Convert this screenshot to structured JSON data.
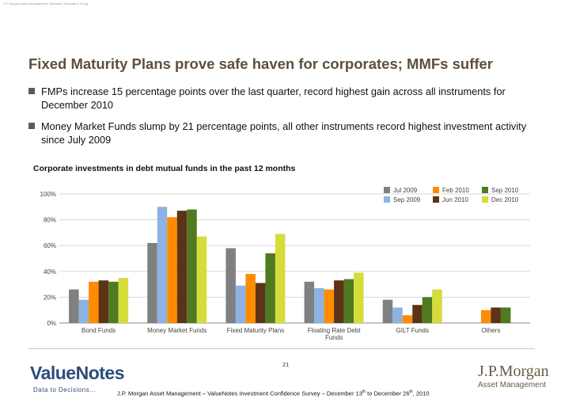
{
  "header": {
    "template_note": "J.P. Morgan Asset Management: Standard Template 4:3 Eng"
  },
  "title": "Fixed Maturity Plans prove safe haven for corporates; MMFs suffer",
  "bullets": [
    "FMPs increase 15 percentage points over the last quarter, record highest gain across all instruments for December 2010",
    "Money Market Funds slump by 21 percentage points, all other instruments record highest investment activity since July 2009"
  ],
  "chart_title": "Corporate investments in debt mutual funds in the past 12 months",
  "chart_data": {
    "type": "bar",
    "categories": [
      "Bond Funds",
      "Money Market Funds",
      "Fixed Maturity Plans",
      "Floating Rate Debt Funds",
      "GILT Funds",
      "Others"
    ],
    "series": [
      {
        "name": "Jul 2009",
        "color": "#808080",
        "values": [
          26,
          62,
          58,
          32,
          18,
          null
        ]
      },
      {
        "name": "Sep 2009",
        "color": "#8db3e2",
        "values": [
          18,
          90,
          29,
          27,
          12,
          null
        ]
      },
      {
        "name": "Feb 2010",
        "color": "#ff8c00",
        "values": [
          32,
          82,
          38,
          26,
          6,
          10
        ]
      },
      {
        "name": "Jun 2010",
        "color": "#5c3317",
        "values": [
          33,
          87,
          31,
          33,
          14,
          12
        ]
      },
      {
        "name": "Sep 2010",
        "color": "#4f7a1f",
        "values": [
          32,
          88,
          54,
          34,
          20,
          12
        ]
      },
      {
        "name": "Dec 2010",
        "color": "#d6dc3a",
        "values": [
          35,
          67,
          69,
          39,
          26,
          null
        ]
      }
    ],
    "legend_order": [
      "Jul 2009",
      "Feb 2010",
      "Sep 2010",
      "Sep 2009",
      "Jun 2010",
      "Dec 2010"
    ],
    "legend_placement": "top-right",
    "ylim": [
      0,
      100
    ],
    "yticks": [
      "0%",
      "20%",
      "40%",
      "60%",
      "80%",
      "100%"
    ],
    "grid": true
  },
  "footer": {
    "page_number": "21",
    "text_main": "J.P. Morgan Asset Management – ValueNotes Investment Confidence Survey – December 13",
    "sup1": "th",
    "text_mid": "  to December 26",
    "sup2": "th",
    "text_end": ", 2010",
    "left_logo": "ValueNotes",
    "left_tagline": "Data to Decisions...",
    "right_logo": "J.P.Morgan",
    "right_logo_sub": "Asset Management"
  }
}
